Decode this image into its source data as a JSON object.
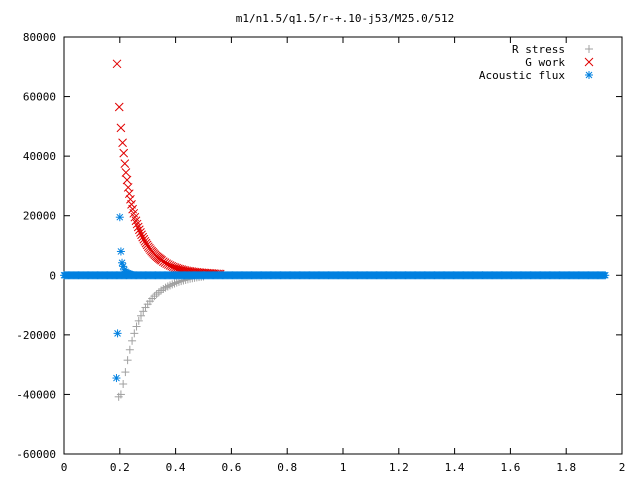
{
  "chart_data": {
    "type": "scatter",
    "title": "m1/n1.5/q1.5/r-+.10-j53/M25.0/512",
    "xlabel": "",
    "ylabel": "",
    "xlim": [
      0,
      2
    ],
    "ylim": [
      -60000,
      80000
    ],
    "x_ticks": [
      0,
      0.2,
      0.4,
      0.6,
      0.8,
      1,
      1.2,
      1.4,
      1.6,
      1.8,
      2
    ],
    "x_tick_labels": [
      "0",
      "0.2",
      "0.4",
      "0.6",
      "0.8",
      "1",
      "1.2",
      "1.4",
      "1.6",
      "1.8",
      "2"
    ],
    "y_ticks": [
      -60000,
      -40000,
      -20000,
      0,
      20000,
      40000,
      60000,
      80000
    ],
    "y_tick_labels": [
      "-60000",
      "-40000",
      "-20000",
      "0",
      "20000",
      "40000",
      "60000",
      "80000"
    ],
    "grid": false,
    "legend_position": "top-right",
    "series": [
      {
        "name": "R stress",
        "marker": "plus",
        "color": "#a0a0a0",
        "points": [
          [
            0.196,
            -40800
          ],
          [
            0.204,
            -40000
          ],
          [
            0.212,
            -36500
          ],
          [
            0.22,
            -32500
          ],
          [
            0.228,
            -28500
          ],
          [
            0.236,
            -25000
          ],
          [
            0.244,
            -22000
          ],
          [
            0.252,
            -19500
          ],
          [
            0.26,
            -17200
          ],
          [
            0.268,
            -15300
          ],
          [
            0.276,
            -13600
          ],
          [
            0.284,
            -12100
          ],
          [
            0.292,
            -10800
          ],
          [
            0.3,
            -9700
          ],
          [
            0.308,
            -8700
          ],
          [
            0.316,
            -7800
          ],
          [
            0.324,
            -7000
          ],
          [
            0.332,
            -6300
          ],
          [
            0.34,
            -5700
          ],
          [
            0.348,
            -5100
          ],
          [
            0.356,
            -4600
          ],
          [
            0.364,
            -4150
          ],
          [
            0.372,
            -3750
          ],
          [
            0.38,
            -3400
          ],
          [
            0.388,
            -3050
          ],
          [
            0.396,
            -2750
          ],
          [
            0.404,
            -2450
          ],
          [
            0.412,
            -2200
          ],
          [
            0.42,
            -1950
          ],
          [
            0.428,
            -1750
          ],
          [
            0.436,
            -1550
          ],
          [
            0.444,
            -1350
          ],
          [
            0.452,
            -1150
          ],
          [
            0.46,
            -1000
          ],
          [
            0.468,
            -850
          ],
          [
            0.476,
            -700
          ],
          [
            0.484,
            -600
          ],
          [
            0.492,
            -500
          ],
          [
            0.5,
            -400
          ]
        ]
      },
      {
        "name": "G work",
        "marker": "cross",
        "color": "#e00000",
        "points": [
          [
            0.19,
            71000
          ],
          [
            0.198,
            56500
          ],
          [
            0.204,
            49500
          ],
          [
            0.21,
            44500
          ],
          [
            0.214,
            41000
          ],
          [
            0.218,
            37500
          ],
          [
            0.222,
            34500
          ],
          [
            0.226,
            32000
          ],
          [
            0.23,
            29500
          ],
          [
            0.234,
            27400
          ],
          [
            0.238,
            25500
          ],
          [
            0.242,
            23800
          ],
          [
            0.246,
            22200
          ],
          [
            0.25,
            20800
          ],
          [
            0.254,
            19500
          ],
          [
            0.258,
            18300
          ],
          [
            0.262,
            17200
          ],
          [
            0.266,
            16200
          ],
          [
            0.27,
            15300
          ],
          [
            0.274,
            14400
          ],
          [
            0.278,
            13600
          ],
          [
            0.282,
            12800
          ],
          [
            0.286,
            12100
          ],
          [
            0.29,
            11400
          ],
          [
            0.294,
            10800
          ],
          [
            0.298,
            10200
          ],
          [
            0.302,
            9600
          ],
          [
            0.306,
            9100
          ],
          [
            0.31,
            8600
          ],
          [
            0.314,
            8100
          ],
          [
            0.318,
            7700
          ],
          [
            0.322,
            7300
          ],
          [
            0.326,
            6900
          ],
          [
            0.33,
            6500
          ],
          [
            0.334,
            6200
          ],
          [
            0.338,
            5900
          ],
          [
            0.342,
            5600
          ],
          [
            0.346,
            5300
          ],
          [
            0.35,
            5000
          ],
          [
            0.356,
            4600
          ],
          [
            0.362,
            4250
          ],
          [
            0.368,
            3900
          ],
          [
            0.374,
            3600
          ],
          [
            0.38,
            3300
          ],
          [
            0.386,
            3050
          ],
          [
            0.392,
            2800
          ],
          [
            0.398,
            2600
          ],
          [
            0.404,
            2400
          ],
          [
            0.41,
            2200
          ],
          [
            0.416,
            2050
          ],
          [
            0.422,
            1900
          ],
          [
            0.428,
            1750
          ],
          [
            0.434,
            1620
          ],
          [
            0.44,
            1500
          ],
          [
            0.446,
            1400
          ],
          [
            0.452,
            1300
          ],
          [
            0.458,
            1220
          ],
          [
            0.464,
            1150
          ],
          [
            0.47,
            1080
          ],
          [
            0.476,
            1020
          ],
          [
            0.482,
            960
          ],
          [
            0.488,
            900
          ],
          [
            0.494,
            860
          ],
          [
            0.5,
            820
          ],
          [
            0.506,
            780
          ],
          [
            0.512,
            740
          ],
          [
            0.518,
            700
          ],
          [
            0.524,
            660
          ],
          [
            0.53,
            620
          ],
          [
            0.536,
            580
          ],
          [
            0.542,
            540
          ],
          [
            0.548,
            500
          ],
          [
            0.554,
            460
          ],
          [
            0.56,
            420
          ]
        ]
      },
      {
        "name": "Acoustic flux",
        "marker": "star",
        "color": "#0080e0",
        "points": [
          [
            0.188,
            -34500
          ],
          [
            0.192,
            -19500
          ],
          [
            0.2,
            19500
          ],
          [
            0.204,
            8000
          ],
          [
            0.208,
            4200
          ],
          [
            0.212,
            3000
          ],
          [
            0.216,
            1800
          ],
          [
            0.22,
            1200
          ],
          [
            0.224,
            900
          ],
          [
            0.228,
            700
          ],
          [
            0.232,
            500
          ],
          [
            0.236,
            400
          ],
          [
            0.24,
            300
          ],
          [
            0.244,
            200
          ]
        ],
        "baseline": {
          "x_range": [
            0,
            1.94
          ],
          "value": 0
        }
      }
    ]
  }
}
